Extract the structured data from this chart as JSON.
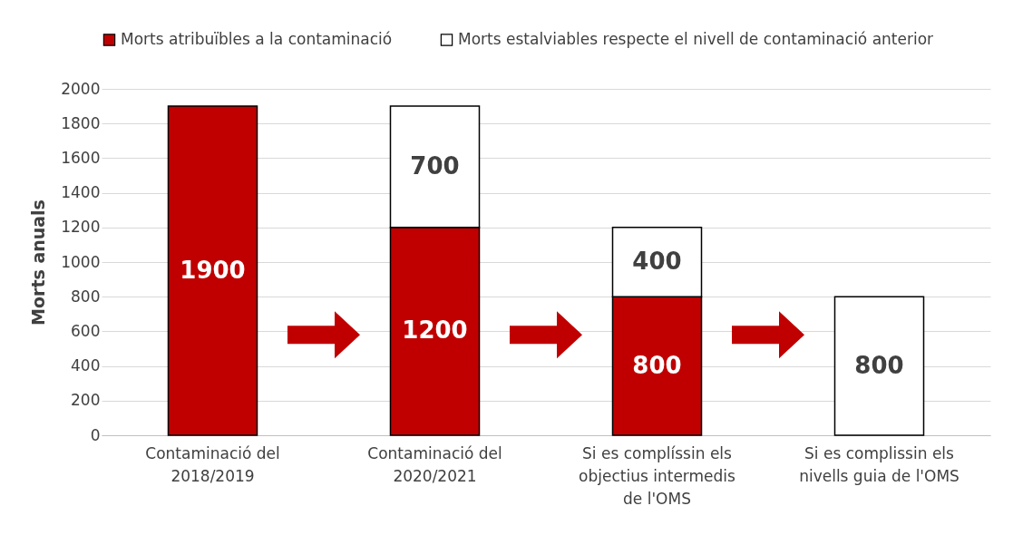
{
  "chart_data": {
    "type": "bar",
    "stacked": true,
    "ylabel": "Morts anuals",
    "categories": [
      "Contaminació del 2018/2019",
      "Contaminació del 2020/2021",
      "Si es complíssin els objectius intermedis de l'OMS",
      "Si es complissin els nivells guia de l'OMS"
    ],
    "series": [
      {
        "name": "Morts atribuïbles a la contaminació",
        "color": "#c00000",
        "values": [
          1900,
          1200,
          800,
          null
        ]
      },
      {
        "name": "Morts estalviables respecte el nivell de contaminació anterior",
        "color": "#ffffff",
        "values": [
          null,
          700,
          400,
          800
        ]
      }
    ],
    "ylim": [
      0,
      2000
    ],
    "yticks": [
      0,
      200,
      400,
      600,
      800,
      1000,
      1200,
      1400,
      1600,
      1800,
      2000
    ],
    "grid": "y",
    "legend": "top",
    "data_labels": true
  }
}
